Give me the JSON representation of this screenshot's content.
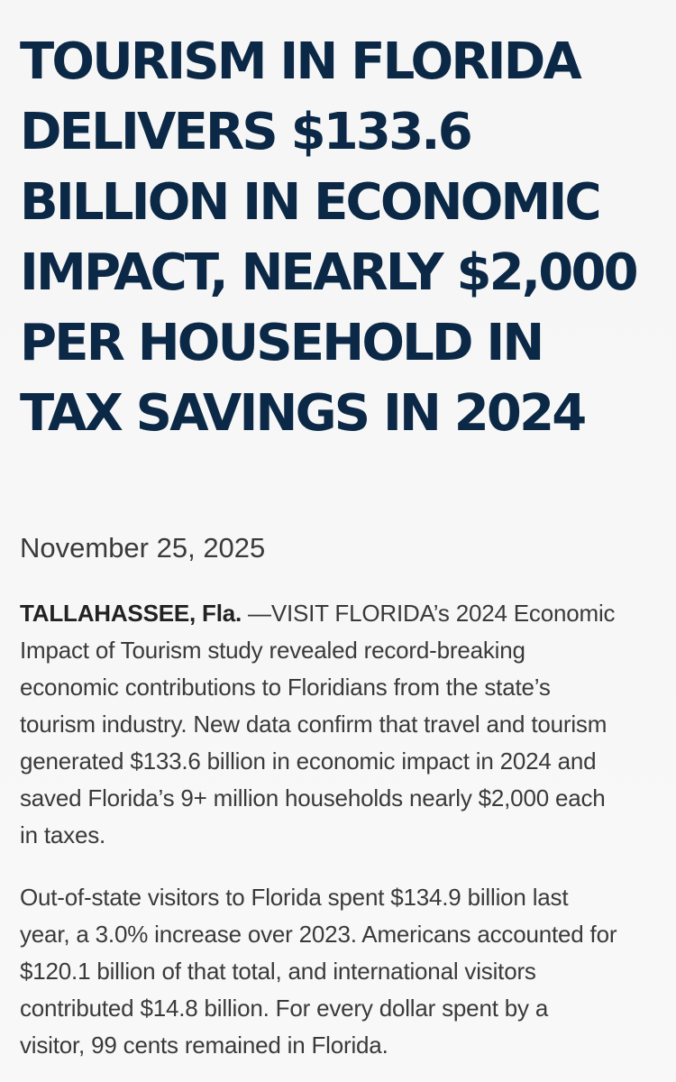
{
  "article": {
    "headline_lines": [
      "TOURISM IN FLORIDA",
      "DELIVERS $133.6",
      "BILLION IN ECONOMIC",
      "IMPACT, NEARLY $2,000",
      "PER HOUSEHOLD IN",
      "TAX SAVINGS IN 2024"
    ],
    "date": "November 25, 2025",
    "paragraph1": {
      "dateline": "TALLAHASSEE, Fla.",
      "first_line_rest": " —VISIT FLORIDA’s 2024 Economic",
      "lines": [
        "Impact of Tourism study revealed record-breaking",
        "economic contributions to Floridians from the state’s",
        "tourism industry. New data confirm that travel and tourism",
        "generated $133.6 billion in economic impact in 2024 and",
        "saved Florida’s 9+ million households nearly $2,000 each",
        "in taxes."
      ]
    },
    "paragraph2": {
      "lines": [
        "Out-of-state visitors to Florida spent $134.9 billion last",
        "year, a 3.0% increase over 2023. Americans accounted for",
        "$120.1 billion of that total, and international visitors",
        "contributed $14.8 billion. For every dollar spent by a",
        "visitor, 99 cents remained in Florida."
      ]
    }
  }
}
